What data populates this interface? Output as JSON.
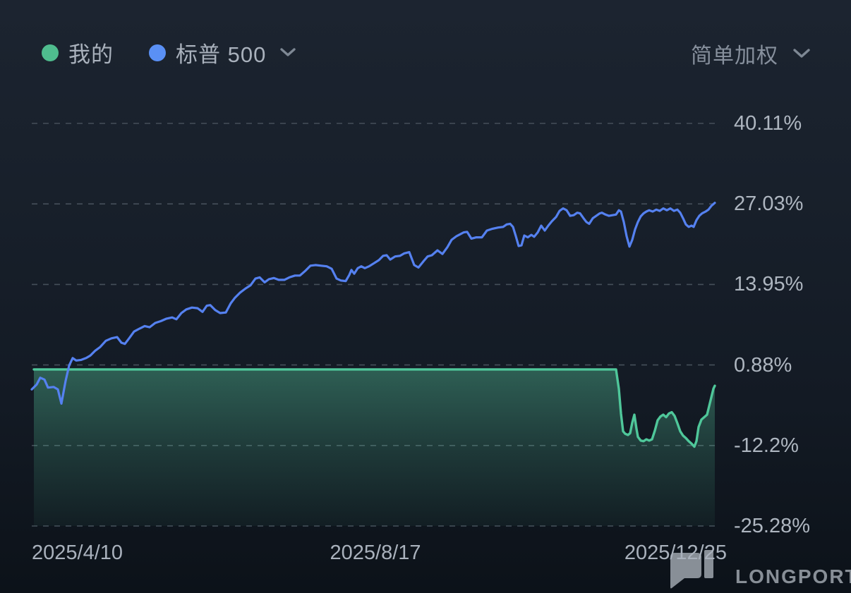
{
  "legend": {
    "items": [
      {
        "label": "我的",
        "color": "#4fbc8e"
      },
      {
        "label": "标普 500",
        "color": "#5a90f5"
      }
    ]
  },
  "toolbar": {
    "weighting_label": "简单加权"
  },
  "watermark": {
    "brand": "LONGPORT"
  },
  "chart_data": {
    "type": "line",
    "title": "",
    "xlabel": "",
    "ylabel": "",
    "grid": "horizontal-dashed",
    "legend_position": "top-left",
    "x_axis": {
      "tick_labels": [
        "2025/4/10",
        "2025/8/17",
        "2025/12/25"
      ]
    },
    "y_axis": {
      "tick_labels": [
        "40.11%",
        "27.03%",
        "13.95%",
        "0.88%",
        "-12.2%",
        "-25.28%"
      ],
      "tick_values": [
        40.11,
        27.03,
        13.95,
        0.88,
        -12.2,
        -25.28
      ],
      "range": [
        -25.28,
        40.11
      ],
      "unit": "%"
    },
    "series": [
      {
        "name": "我的",
        "style": "area",
        "color": "#4fc79a",
        "fill_color": "#56c89c",
        "points": [
          [
            48,
            0.15
          ],
          [
            873,
            0.15
          ],
          [
            877,
            -3
          ],
          [
            880,
            -7
          ],
          [
            883,
            -9.9
          ],
          [
            886,
            -10.3
          ],
          [
            890,
            -10.5
          ],
          [
            893,
            -10.2
          ],
          [
            896,
            -8.5
          ],
          [
            899,
            -7.2
          ],
          [
            902,
            -9.5
          ],
          [
            904,
            -10.8
          ],
          [
            908,
            -11.4
          ],
          [
            912,
            -11.5
          ],
          [
            916,
            -11.2
          ],
          [
            920,
            -11.4
          ],
          [
            924,
            -11.2
          ],
          [
            928,
            -9.8
          ],
          [
            932,
            -8.1
          ],
          [
            936,
            -7.5
          ],
          [
            940,
            -7.2
          ],
          [
            944,
            -7.6
          ],
          [
            948,
            -7.0
          ],
          [
            952,
            -6.8
          ],
          [
            956,
            -7.4
          ],
          [
            960,
            -8.6
          ],
          [
            964,
            -9.9
          ],
          [
            968,
            -10.6
          ],
          [
            972,
            -11.0
          ],
          [
            976,
            -11.5
          ],
          [
            980,
            -11.9
          ],
          [
            984,
            -12.4
          ],
          [
            987,
            -11.5
          ],
          [
            990,
            -9.2
          ],
          [
            994,
            -8.0
          ],
          [
            998,
            -7.6
          ],
          [
            1002,
            -7.2
          ],
          [
            1005,
            -5.8
          ],
          [
            1008,
            -4.4
          ],
          [
            1011,
            -3.0
          ],
          [
            1013,
            -2.5
          ]
        ]
      },
      {
        "name": "标普 500",
        "style": "line",
        "color": "#5581f0",
        "points": [
          [
            45,
            -3.1
          ],
          [
            52,
            -2.3
          ],
          [
            57,
            -1.2
          ],
          [
            63,
            -1.5
          ],
          [
            68,
            -2.8
          ],
          [
            76,
            -2.7
          ],
          [
            82,
            -3.1
          ],
          [
            87,
            -5.4
          ],
          [
            93,
            -1.7
          ],
          [
            98,
            0.8
          ],
          [
            103,
            2.0
          ],
          [
            108,
            1.6
          ],
          [
            115,
            1.7
          ],
          [
            122,
            2.0
          ],
          [
            128,
            2.4
          ],
          [
            135,
            3.2
          ],
          [
            142,
            3.8
          ],
          [
            150,
            4.8
          ],
          [
            158,
            5.2
          ],
          [
            166,
            5.4
          ],
          [
            172,
            4.5
          ],
          [
            177,
            4.3
          ],
          [
            183,
            5.2
          ],
          [
            190,
            6.3
          ],
          [
            198,
            6.8
          ],
          [
            205,
            7.2
          ],
          [
            212,
            7.0
          ],
          [
            220,
            7.7
          ],
          [
            228,
            8.0
          ],
          [
            236,
            8.4
          ],
          [
            244,
            8.6
          ],
          [
            250,
            8.3
          ],
          [
            257,
            9.3
          ],
          [
            264,
            9.9
          ],
          [
            272,
            10.2
          ],
          [
            280,
            10.1
          ],
          [
            287,
            9.5
          ],
          [
            293,
            10.5
          ],
          [
            298,
            10.6
          ],
          [
            305,
            9.8
          ],
          [
            312,
            9.3
          ],
          [
            320,
            9.4
          ],
          [
            327,
            10.9
          ],
          [
            333,
            11.8
          ],
          [
            340,
            12.6
          ],
          [
            348,
            13.3
          ],
          [
            355,
            13.8
          ],
          [
            362,
            14.9
          ],
          [
            368,
            15.1
          ],
          [
            375,
            14.3
          ],
          [
            381,
            14.8
          ],
          [
            388,
            15.0
          ],
          [
            395,
            14.7
          ],
          [
            403,
            14.7
          ],
          [
            410,
            15.1
          ],
          [
            418,
            15.4
          ],
          [
            425,
            15.4
          ],
          [
            433,
            16.2
          ],
          [
            440,
            17.0
          ],
          [
            447,
            17.1
          ],
          [
            455,
            17.0
          ],
          [
            463,
            16.9
          ],
          [
            470,
            16.5
          ],
          [
            477,
            14.9
          ],
          [
            483,
            14.6
          ],
          [
            490,
            14.5
          ],
          [
            495,
            15.5
          ],
          [
            498,
            16.3
          ],
          [
            502,
            15.7
          ],
          [
            507,
            16.6
          ],
          [
            512,
            16.9
          ],
          [
            517,
            16.6
          ],
          [
            523,
            16.9
          ],
          [
            530,
            17.4
          ],
          [
            537,
            17.9
          ],
          [
            543,
            18.6
          ],
          [
            548,
            18.7
          ],
          [
            553,
            18.0
          ],
          [
            560,
            18.5
          ],
          [
            567,
            18.6
          ],
          [
            573,
            19.0
          ],
          [
            580,
            19.2
          ],
          [
            587,
            17.1
          ],
          [
            593,
            16.7
          ],
          [
            600,
            17.7
          ],
          [
            606,
            18.5
          ],
          [
            612,
            18.7
          ],
          [
            620,
            19.5
          ],
          [
            627,
            18.9
          ],
          [
            634,
            20.0
          ],
          [
            640,
            21.2
          ],
          [
            647,
            21.8
          ],
          [
            652,
            22.1
          ],
          [
            657,
            22.4
          ],
          [
            662,
            22.5
          ],
          [
            668,
            21.4
          ],
          [
            675,
            21.6
          ],
          [
            683,
            21.6
          ],
          [
            690,
            22.7
          ],
          [
            698,
            23.0
          ],
          [
            706,
            23.2
          ],
          [
            713,
            23.3
          ],
          [
            718,
            23.7
          ],
          [
            723,
            23.8
          ],
          [
            727,
            23.3
          ],
          [
            731,
            21.8
          ],
          [
            735,
            20.2
          ],
          [
            739,
            20.3
          ],
          [
            743,
            21.9
          ],
          [
            748,
            21.6
          ],
          [
            753,
            22.0
          ],
          [
            757,
            21.7
          ],
          [
            762,
            22.4
          ],
          [
            767,
            23.5
          ],
          [
            772,
            22.7
          ],
          [
            777,
            23.5
          ],
          [
            782,
            24.2
          ],
          [
            788,
            24.9
          ],
          [
            793,
            25.9
          ],
          [
            798,
            26.3
          ],
          [
            803,
            26.0
          ],
          [
            808,
            25.1
          ],
          [
            813,
            25.2
          ],
          [
            818,
            25.6
          ],
          [
            822,
            25.5
          ],
          [
            827,
            24.7
          ],
          [
            831,
            24.1
          ],
          [
            835,
            23.8
          ],
          [
            840,
            24.7
          ],
          [
            845,
            25.1
          ],
          [
            850,
            25.5
          ],
          [
            853,
            25.6
          ],
          [
            858,
            25.3
          ],
          [
            863,
            25.1
          ],
          [
            868,
            25.2
          ],
          [
            873,
            25.3
          ],
          [
            877,
            26.0
          ],
          [
            880,
            25.8
          ],
          [
            884,
            24.1
          ],
          [
            888,
            21.8
          ],
          [
            892,
            20.1
          ],
          [
            896,
            21.2
          ],
          [
            900,
            22.9
          ],
          [
            904,
            24.1
          ],
          [
            908,
            25.0
          ],
          [
            912,
            25.5
          ],
          [
            916,
            25.8
          ],
          [
            920,
            26.0
          ],
          [
            925,
            25.8
          ],
          [
            930,
            26.1
          ],
          [
            935,
            25.9
          ],
          [
            940,
            26.3
          ],
          [
            945,
            26.0
          ],
          [
            950,
            26.3
          ],
          [
            955,
            25.9
          ],
          [
            960,
            26.1
          ],
          [
            964,
            25.6
          ],
          [
            968,
            24.7
          ],
          [
            972,
            23.7
          ],
          [
            976,
            23.3
          ],
          [
            980,
            23.5
          ],
          [
            983,
            23.3
          ],
          [
            987,
            24.4
          ],
          [
            991,
            25.1
          ],
          [
            995,
            25.5
          ],
          [
            1000,
            25.8
          ],
          [
            1004,
            26.1
          ],
          [
            1008,
            26.7
          ],
          [
            1013,
            27.2
          ]
        ]
      }
    ]
  }
}
